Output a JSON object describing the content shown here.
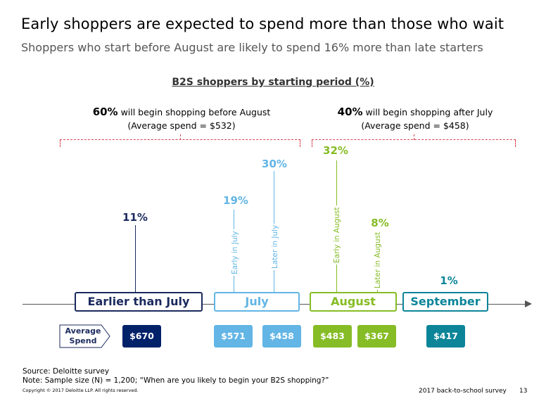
{
  "title": "Early shoppers are expected to spend more than those who wait",
  "subtitle": "Shoppers who start before August are likely to spend 16% more than late starters",
  "section_title": "B2S shoppers by starting period (%)",
  "groups": [
    {
      "pct": "60%",
      "text": " will begin shopping before August",
      "avg": "(Average spend = $532)"
    },
    {
      "pct": "40%",
      "text": " will begin shopping after July",
      "avg": "(Average spend = $458)"
    }
  ],
  "segments": [
    {
      "label": "11%",
      "vlabel": "",
      "color": "#1b2a5e"
    },
    {
      "label": "19%",
      "vlabel": "Early in July",
      "color": "#62b5e5"
    },
    {
      "label": "30%",
      "vlabel": "Later in July",
      "color": "#62b5e5"
    },
    {
      "label": "32%",
      "vlabel": "Early in August",
      "color": "#86bc25"
    },
    {
      "label": "8%",
      "vlabel": "Later in August",
      "color": "#86bc25"
    },
    {
      "label": "1%",
      "vlabel": "",
      "color": "#0c8599"
    }
  ],
  "periods": [
    {
      "label": "Earlier than July",
      "color": "#1b2a5e"
    },
    {
      "label": "July",
      "color": "#62b5e5"
    },
    {
      "label": "August",
      "color": "#86bc25"
    },
    {
      "label": "September",
      "color": "#0c8599"
    }
  ],
  "average_label": "Average Spend",
  "spends": [
    {
      "value": "$670",
      "color": "#012169"
    },
    {
      "value": "$571",
      "color": "#62b5e5"
    },
    {
      "value": "$458",
      "color": "#62b5e5"
    },
    {
      "value": "$483",
      "color": "#86bc25"
    },
    {
      "value": "$367",
      "color": "#86bc25"
    },
    {
      "value": "$417",
      "color": "#0c8599"
    }
  ],
  "footer": {
    "source": "Source: Deloitte survey",
    "note": "Note: Sample size (N) = 1,200; “When are you likely to begin your B2S shopping?”",
    "copyright": "Copyright © 2017 Deloitte LLP. All rights reserved.",
    "survey": "2017 back-to-school survey",
    "page": "13"
  }
}
